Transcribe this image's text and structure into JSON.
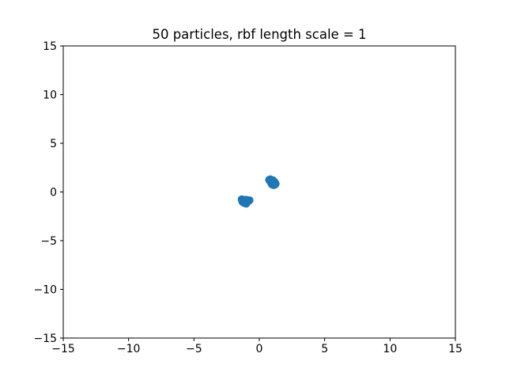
{
  "chart_data": {
    "type": "scatter",
    "title": "50 particles, rbf length scale = 1",
    "xlabel": "",
    "ylabel": "",
    "xlim": [
      -15,
      15
    ],
    "ylim": [
      -15,
      15
    ],
    "xticks": [
      -15,
      -10,
      -5,
      0,
      5,
      10,
      15
    ],
    "yticks": [
      -15,
      -10,
      -5,
      0,
      5,
      10,
      15
    ],
    "xtick_labels": [
      "−15",
      "−10",
      "−5",
      "0",
      "5",
      "10",
      "15"
    ],
    "ytick_labels": [
      "−15",
      "−10",
      "−5",
      "0",
      "5",
      "10",
      "15"
    ],
    "grid": false,
    "marker_color": "#1f77b4",
    "series": [
      {
        "x": [
          0.75,
          0.85,
          0.95,
          1.0,
          1.05,
          1.1,
          1.15,
          1.2,
          0.8,
          0.9,
          1.0,
          1.1,
          1.2,
          1.25,
          0.95,
          1.05,
          1.15,
          0.85,
          1.0,
          1.1,
          1.2,
          0.9,
          1.0,
          1.1,
          1.05
        ],
        "y": [
          1.25,
          1.3,
          1.2,
          1.1,
          1.2,
          1.0,
          1.05,
          0.95,
          1.15,
          1.0,
          0.9,
          0.85,
          0.75,
          0.85,
          0.8,
          1.0,
          0.9,
          1.05,
          0.75,
          0.7,
          0.8,
          0.95,
          1.0,
          1.1,
          0.85
        ]
      },
      {
        "x": [
          -1.35,
          -1.25,
          -1.15,
          -1.05,
          -0.95,
          -1.3,
          -1.2,
          -1.1,
          -1.0,
          -1.15,
          -1.05,
          -0.8,
          -0.75,
          -1.25,
          -1.1,
          -0.95,
          -1.2,
          -1.0,
          -0.85,
          -1.3,
          -1.15,
          -1.05,
          -0.9,
          -1.1,
          -1.0
        ],
        "y": [
          -0.75,
          -0.8,
          -0.9,
          -0.85,
          -0.95,
          -0.95,
          -1.05,
          -1.0,
          -1.1,
          -1.15,
          -0.9,
          -0.9,
          -0.85,
          -0.85,
          -0.8,
          -1.0,
          -1.1,
          -1.2,
          -0.95,
          -1.0,
          -0.95,
          -1.05,
          -1.0,
          -0.9,
          -0.8
        ]
      }
    ]
  }
}
